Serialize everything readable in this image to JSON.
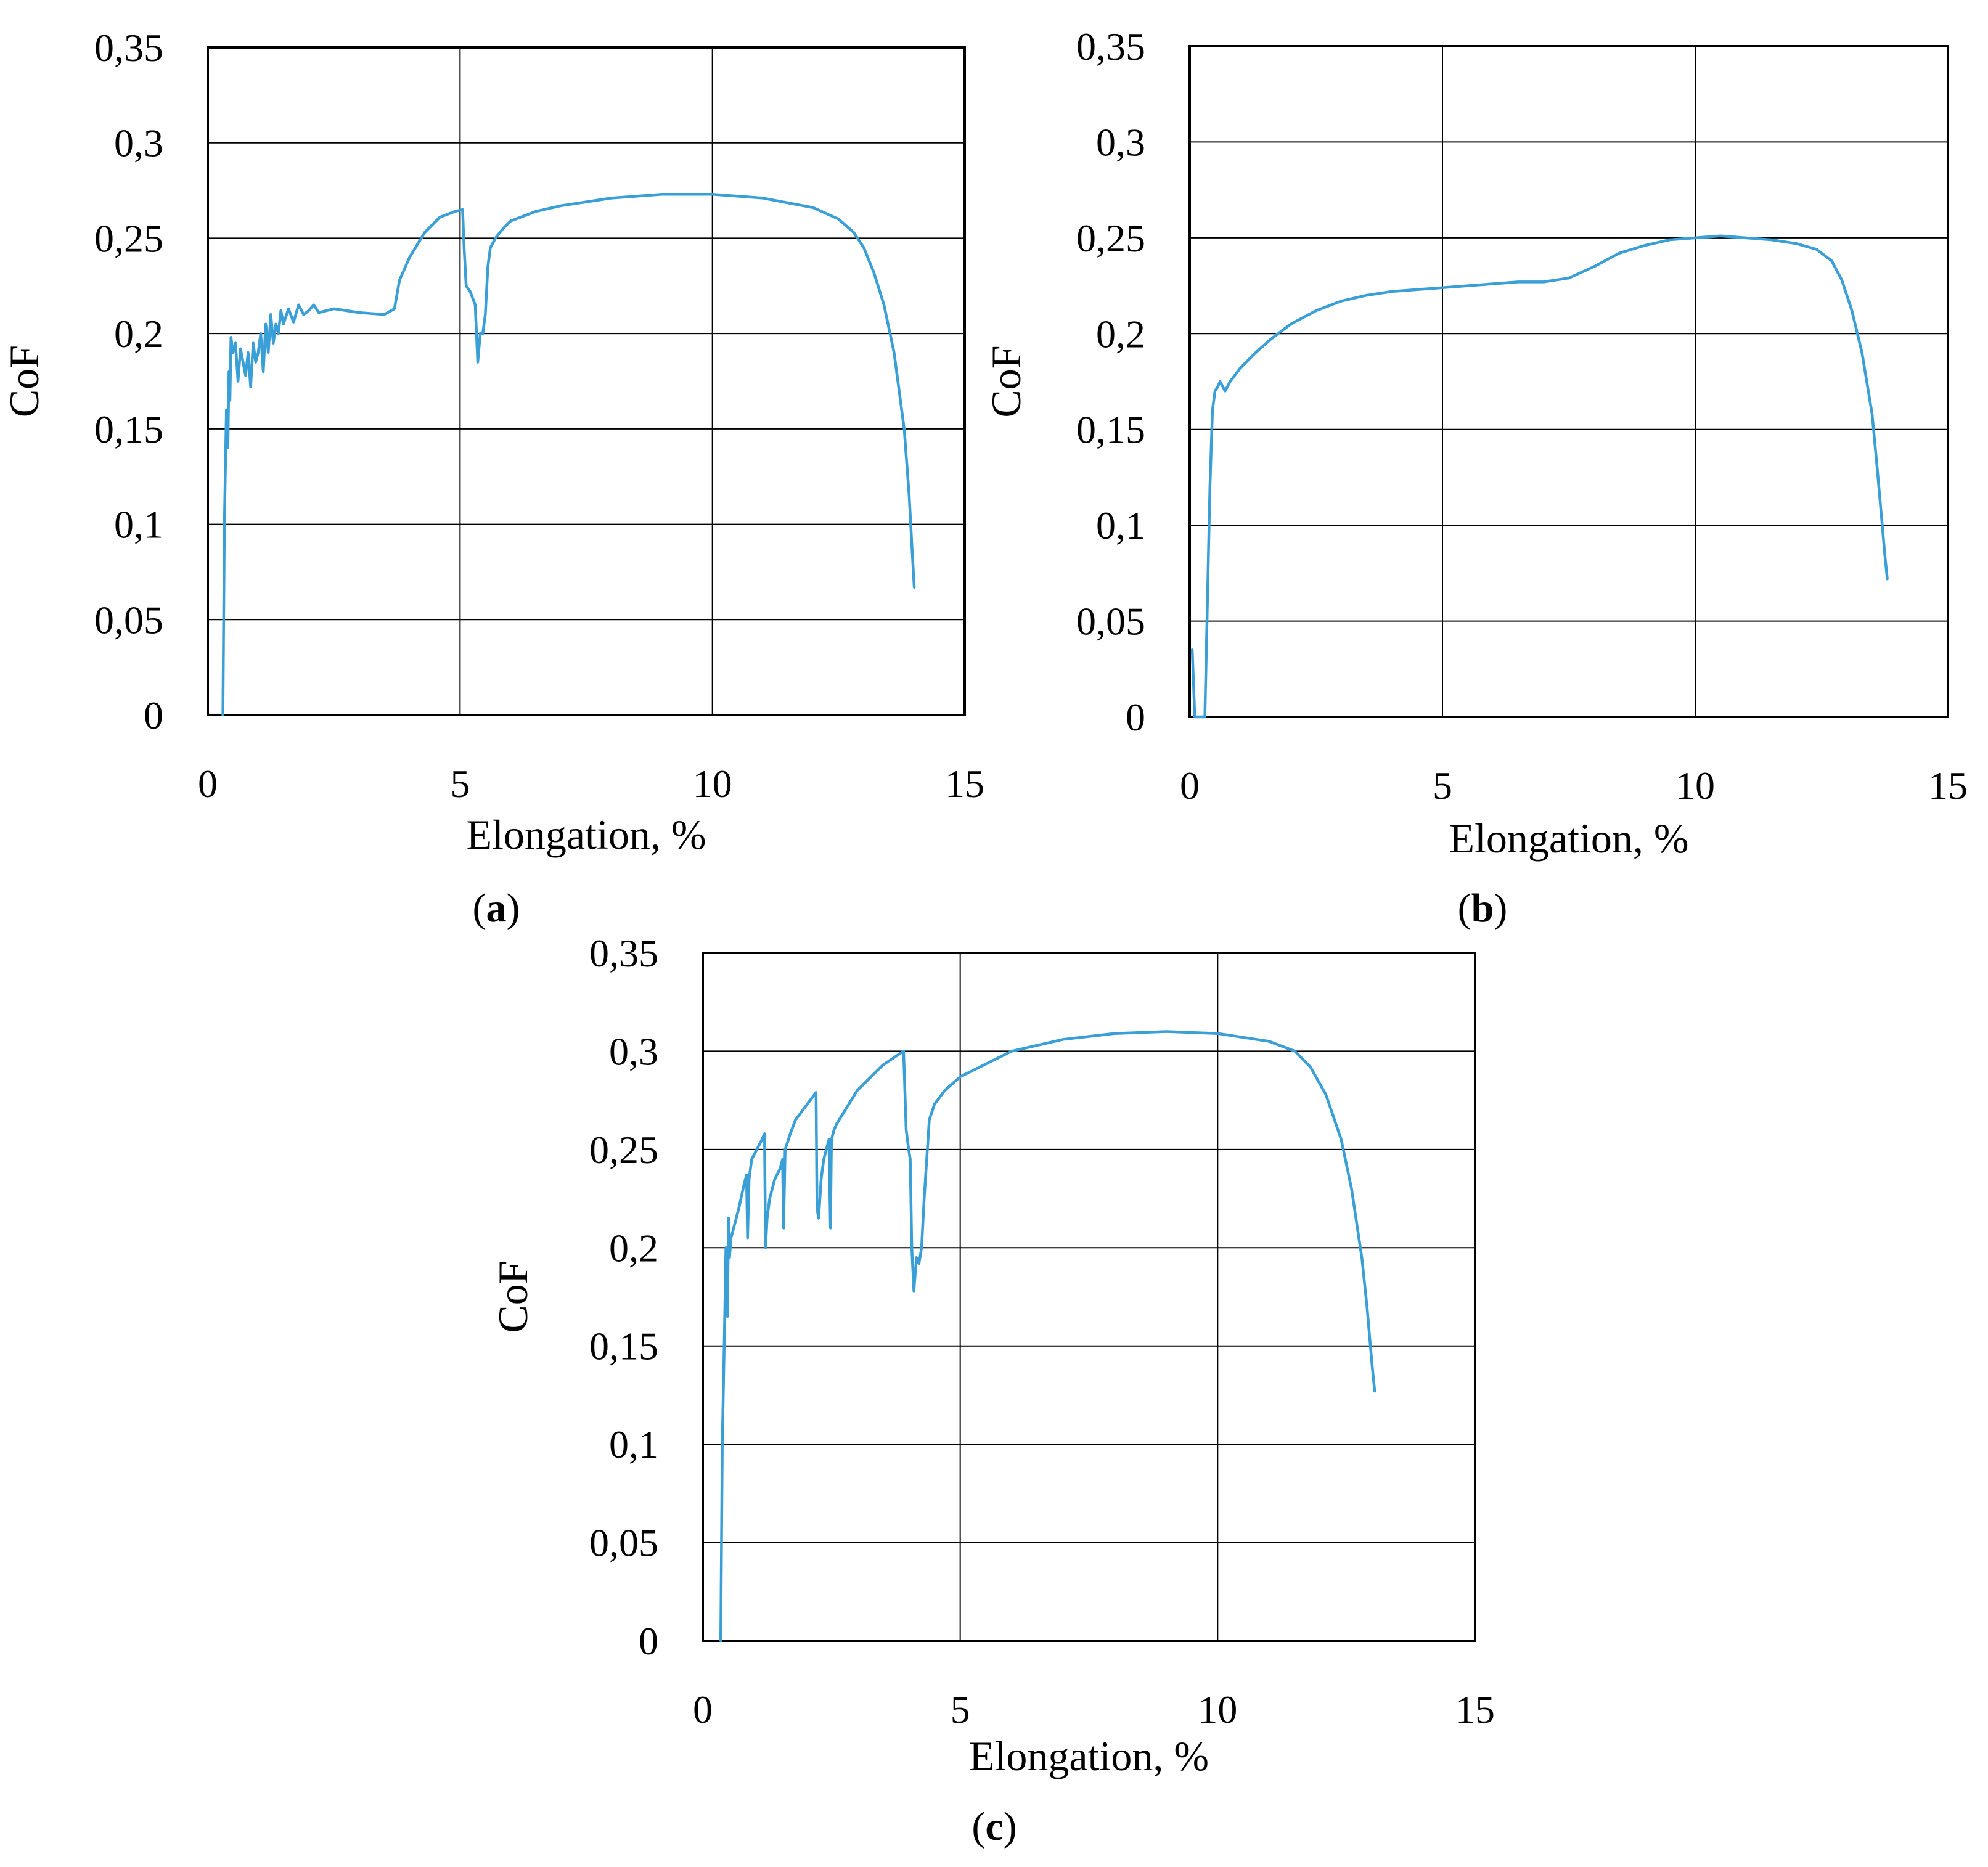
{
  "figure": {
    "panels": [
      {
        "letter": "a",
        "open": "(",
        "close": ")"
      },
      {
        "letter": "b",
        "open": "(",
        "close": ")"
      },
      {
        "letter": "c",
        "open": "(",
        "close": ")"
      }
    ]
  },
  "colors": {
    "series": "#3A9FD6",
    "grid": "#000000",
    "frame": "#000000",
    "background": "#ffffff"
  },
  "chart_data": [
    {
      "type": "line",
      "panel": "(a)",
      "xlabel": "Elongation, %",
      "ylabel": "CoF",
      "xlim": [
        0,
        15
      ],
      "ylim": [
        0,
        0.35
      ],
      "xticks": [
        "0",
        "5",
        "10",
        "15"
      ],
      "yticks": [
        "0",
        "0,05",
        "0,1",
        "0,15",
        "0,2",
        "0,25",
        "0,3",
        "0,35"
      ],
      "grid": true,
      "legend": "none",
      "series": [
        {
          "x": [
            0.3,
            0.33,
            0.37,
            0.4,
            0.42,
            0.44,
            0.46,
            0.5,
            0.55,
            0.6,
            0.65,
            0.7,
            0.75,
            0.8,
            0.85,
            0.9,
            0.95,
            1.0,
            1.05,
            1.1,
            1.15,
            1.2,
            1.25,
            1.3,
            1.35,
            1.4,
            1.45,
            1.5,
            1.6,
            1.7,
            1.8,
            1.9,
            2.0,
            2.1,
            2.2,
            2.5,
            3.0,
            3.5,
            3.7,
            3.8,
            4.0,
            4.3,
            4.6,
            4.9,
            5.05,
            5.08,
            5.12,
            5.2,
            5.3,
            5.35,
            5.4,
            5.45,
            5.5,
            5.55,
            5.6,
            5.7,
            5.85,
            6.0,
            6.5,
            7.0,
            8.0,
            9.0,
            10.0,
            11.0,
            12.0,
            12.5,
            12.8,
            13.0,
            13.2,
            13.4,
            13.6,
            13.8,
            13.9,
            13.96,
            14.0
          ],
          "y": [
            0.0,
            0.1,
            0.16,
            0.14,
            0.18,
            0.165,
            0.198,
            0.19,
            0.195,
            0.175,
            0.192,
            0.185,
            0.178,
            0.19,
            0.172,
            0.195,
            0.185,
            0.19,
            0.2,
            0.18,
            0.205,
            0.19,
            0.21,
            0.195,
            0.205,
            0.2,
            0.212,
            0.205,
            0.213,
            0.206,
            0.215,
            0.21,
            0.212,
            0.215,
            0.211,
            0.213,
            0.211,
            0.21,
            0.213,
            0.228,
            0.24,
            0.253,
            0.261,
            0.264,
            0.265,
            0.245,
            0.225,
            0.222,
            0.215,
            0.185,
            0.2,
            0.2,
            0.21,
            0.235,
            0.245,
            0.25,
            0.255,
            0.259,
            0.264,
            0.267,
            0.271,
            0.273,
            0.273,
            0.271,
            0.266,
            0.26,
            0.253,
            0.245,
            0.232,
            0.215,
            0.19,
            0.15,
            0.115,
            0.085,
            0.067
          ]
        }
      ]
    },
    {
      "type": "line",
      "panel": "(b)",
      "xlabel": "Elongation, %",
      "ylabel": "CoF",
      "xlim": [
        0,
        15
      ],
      "ylim": [
        0,
        0.35
      ],
      "xticks": [
        "0",
        "5",
        "10",
        "15"
      ],
      "yticks": [
        "0",
        "0,05",
        "0,1",
        "0,15",
        "0,2",
        "0,25",
        "0,3",
        "0,35"
      ],
      "grid": true,
      "legend": "none",
      "series": [
        {
          "x": [
            0.05,
            0.1,
            0.2,
            0.3,
            0.35,
            0.4,
            0.45,
            0.5,
            0.55,
            0.6,
            0.7,
            0.8,
            1.0,
            1.3,
            1.6,
            2.0,
            2.5,
            3.0,
            3.5,
            4.0,
            5.0,
            5.5,
            6.0,
            6.5,
            7.0,
            7.5,
            8.0,
            8.5,
            9.0,
            9.5,
            10.0,
            10.5,
            11.0,
            11.5,
            12.0,
            12.4,
            12.7,
            12.9,
            13.1,
            13.3,
            13.5,
            13.6,
            13.7,
            13.75,
            13.8
          ],
          "y": [
            0.035,
            0.0,
            0.0,
            0.0,
            0.06,
            0.12,
            0.16,
            0.17,
            0.172,
            0.175,
            0.17,
            0.175,
            0.182,
            0.19,
            0.197,
            0.205,
            0.212,
            0.217,
            0.22,
            0.222,
            0.224,
            0.225,
            0.226,
            0.227,
            0.227,
            0.229,
            0.235,
            0.242,
            0.246,
            0.249,
            0.25,
            0.251,
            0.25,
            0.249,
            0.247,
            0.244,
            0.238,
            0.228,
            0.212,
            0.19,
            0.158,
            0.13,
            0.1,
            0.085,
            0.072
          ]
        }
      ]
    },
    {
      "type": "line",
      "panel": "(c)",
      "xlabel": "Elongation, %",
      "ylabel": "CoF",
      "xlim": [
        0,
        15
      ],
      "ylim": [
        0,
        0.35
      ],
      "xticks": [
        "0",
        "5",
        "10",
        "15"
      ],
      "yticks": [
        "0",
        "0,05",
        "0,1",
        "0,15",
        "0,2",
        "0,25",
        "0,3",
        "0,35"
      ],
      "grid": true,
      "legend": "none",
      "series": [
        {
          "x": [
            0.35,
            0.38,
            0.42,
            0.45,
            0.48,
            0.5,
            0.52,
            0.55,
            0.6,
            0.7,
            0.8,
            0.85,
            0.87,
            0.9,
            0.95,
            1.05,
            1.15,
            1.2,
            1.22,
            1.25,
            1.3,
            1.4,
            1.5,
            1.55,
            1.57,
            1.6,
            1.7,
            1.8,
            2.0,
            2.2,
            2.22,
            2.25,
            2.3,
            2.35,
            2.4,
            2.45,
            2.48,
            2.5,
            2.55,
            2.6,
            3.0,
            3.5,
            3.9,
            3.95,
            4.0,
            4.03,
            4.06,
            4.1,
            4.15,
            4.2,
            4.25,
            4.3,
            4.4,
            4.5,
            4.7,
            5.0,
            6.0,
            7.0,
            8.0,
            9.0,
            10.0,
            11.0,
            11.5,
            11.8,
            12.1,
            12.4,
            12.6,
            12.8,
            12.9,
            13.0,
            13.05
          ],
          "y": [
            0.0,
            0.1,
            0.155,
            0.2,
            0.165,
            0.215,
            0.195,
            0.205,
            0.21,
            0.22,
            0.232,
            0.237,
            0.205,
            0.235,
            0.245,
            0.25,
            0.255,
            0.258,
            0.2,
            0.215,
            0.225,
            0.235,
            0.24,
            0.245,
            0.21,
            0.25,
            0.258,
            0.265,
            0.272,
            0.279,
            0.22,
            0.215,
            0.235,
            0.245,
            0.25,
            0.255,
            0.21,
            0.255,
            0.26,
            0.263,
            0.28,
            0.293,
            0.3,
            0.26,
            0.25,
            0.245,
            0.2,
            0.178,
            0.195,
            0.192,
            0.2,
            0.225,
            0.265,
            0.273,
            0.28,
            0.287,
            0.3,
            0.306,
            0.309,
            0.31,
            0.309,
            0.305,
            0.3,
            0.292,
            0.278,
            0.255,
            0.23,
            0.195,
            0.17,
            0.14,
            0.127
          ]
        }
      ]
    }
  ]
}
